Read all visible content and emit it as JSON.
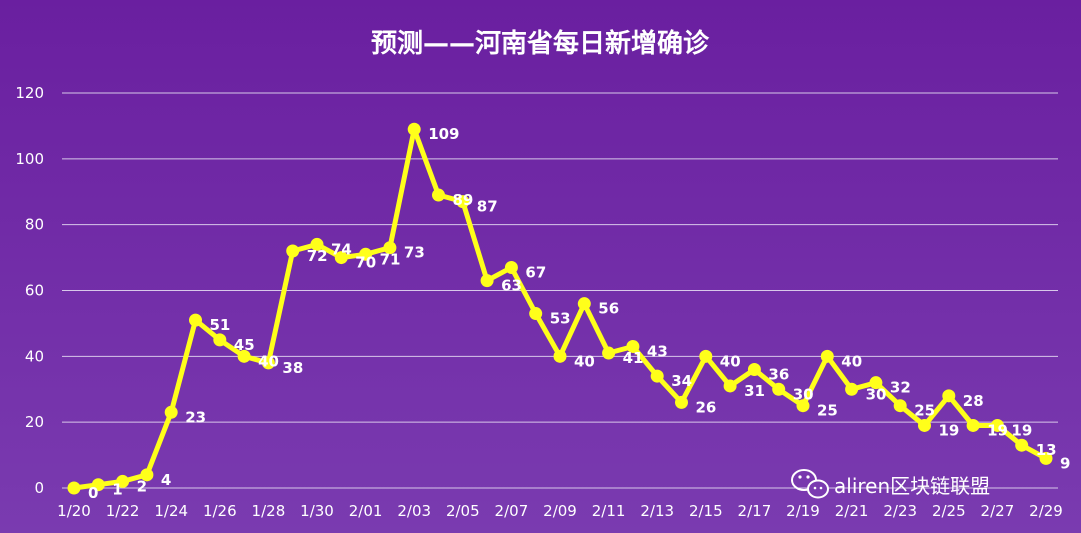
{
  "colors": {
    "background_top": "#6a1fa0",
    "background_bottom": "#7a3bb0",
    "line": "#ffff1a",
    "gridline": "#d8c8ea",
    "text": "#ffffff"
  },
  "watermark": {
    "icon": "wechat-icon",
    "text": "aliren区块链联盟"
  },
  "chart_data": {
    "type": "line",
    "title": "预测——河南省每日新增确诊",
    "xlabel": "",
    "ylabel": "",
    "ylim": [
      0,
      120
    ],
    "yticks": [
      0,
      20,
      40,
      60,
      80,
      100,
      120
    ],
    "grid": true,
    "legend": "none",
    "x": [
      "1/20",
      "1/21",
      "1/22",
      "1/23",
      "1/24",
      "1/25",
      "1/26",
      "1/27",
      "1/28",
      "1/29",
      "1/30",
      "1/31",
      "2/01",
      "2/02",
      "2/03",
      "2/04",
      "2/05",
      "2/06",
      "2/07",
      "2/08",
      "2/09",
      "2/10",
      "2/11",
      "2/12",
      "2/13",
      "2/14",
      "2/15",
      "2/16",
      "2/17",
      "2/18",
      "2/19",
      "2/20",
      "2/21",
      "2/22",
      "2/23",
      "2/24",
      "2/25",
      "2/26",
      "2/27",
      "2/28",
      "2/29"
    ],
    "xtick_labels": [
      "1/20",
      "1/22",
      "1/24",
      "1/26",
      "1/28",
      "1/30",
      "2/01",
      "2/03",
      "2/05",
      "2/07",
      "2/09",
      "2/11",
      "2/13",
      "2/15",
      "2/17",
      "2/19",
      "2/21",
      "2/23",
      "2/25",
      "2/27",
      "2/29"
    ],
    "series": [
      {
        "values": [
          0,
          1,
          2,
          4,
          23,
          51,
          45,
          40,
          38,
          72,
          74,
          70,
          71,
          73,
          109,
          89,
          87,
          63,
          67,
          53,
          40,
          56,
          41,
          43,
          34,
          26,
          40,
          31,
          36,
          30,
          25,
          40,
          30,
          32,
          25,
          19,
          28,
          19,
          19,
          13,
          9
        ]
      }
    ]
  }
}
